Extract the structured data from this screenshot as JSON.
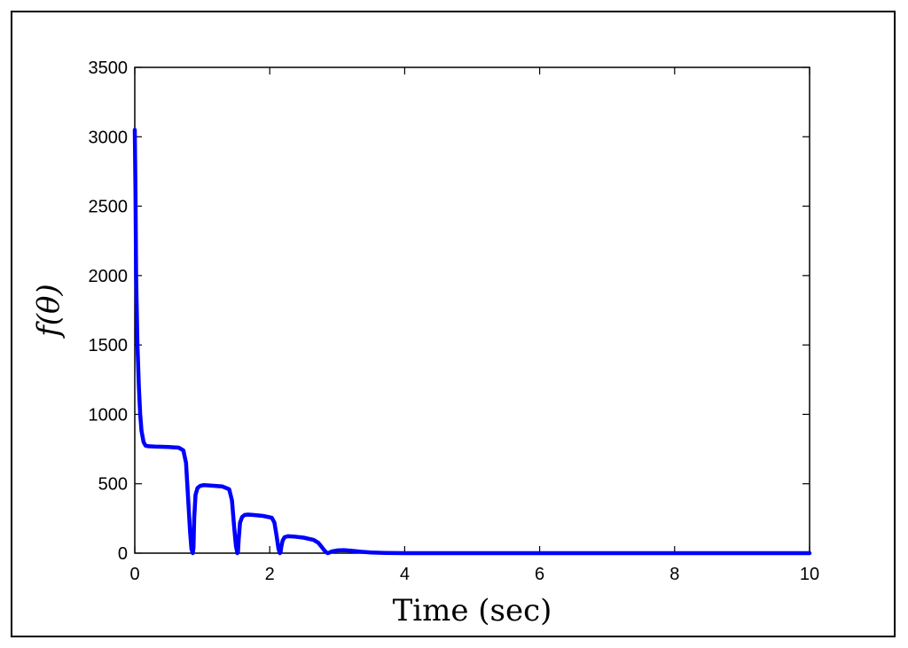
{
  "chart_data": {
    "type": "line",
    "title": "",
    "xlabel": "Time (sec)",
    "ylabel": "f(θ)",
    "xlim": [
      0,
      10
    ],
    "ylim": [
      0,
      3500
    ],
    "xticks": [
      0,
      2,
      4,
      6,
      8,
      10
    ],
    "yticks": [
      0,
      500,
      1000,
      1500,
      2000,
      2500,
      3000,
      3500
    ],
    "grid": false,
    "line_color": "#0000ff",
    "series": [
      {
        "x": [
          0,
          0.01,
          0.02,
          0.04,
          0.06,
          0.08,
          0.1,
          0.13,
          0.16,
          0.2,
          0.3,
          0.5,
          0.65,
          0.72,
          0.76,
          0.79,
          0.82,
          0.84,
          0.86,
          0.87,
          0.88,
          0.9,
          0.93,
          0.97,
          1.02,
          1.1,
          1.3,
          1.4,
          1.44,
          1.47,
          1.5,
          1.52,
          1.53,
          1.54,
          1.56,
          1.59,
          1.63,
          1.68,
          1.75,
          1.9,
          2.03,
          2.07,
          2.1,
          2.13,
          2.15,
          2.16,
          2.17,
          2.19,
          2.22,
          2.27,
          2.35,
          2.5,
          2.65,
          2.72,
          2.77,
          2.81,
          2.84,
          2.86,
          2.88,
          2.92,
          3.0,
          3.1,
          3.2,
          3.35,
          3.5,
          3.7,
          4.0,
          5.0,
          6.0,
          8.0,
          10.0
        ],
        "y": [
          3050,
          2600,
          2000,
          1500,
          1200,
          1000,
          880,
          800,
          775,
          770,
          768,
          765,
          760,
          740,
          650,
          400,
          150,
          30,
          0,
          40,
          250,
          420,
          470,
          485,
          490,
          488,
          480,
          460,
          380,
          200,
          50,
          0,
          10,
          100,
          220,
          260,
          275,
          278,
          275,
          268,
          255,
          220,
          130,
          30,
          0,
          5,
          40,
          90,
          115,
          122,
          120,
          112,
          95,
          75,
          45,
          20,
          5,
          0,
          3,
          12,
          20,
          22,
          18,
          10,
          5,
          2,
          0,
          0,
          0,
          0,
          0
        ]
      }
    ]
  }
}
